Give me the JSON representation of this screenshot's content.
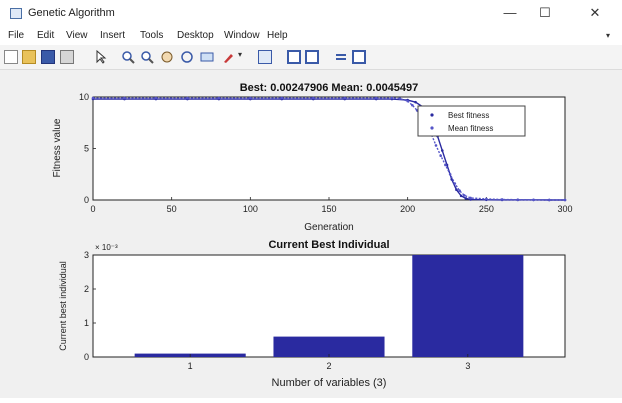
{
  "window": {
    "title": "Genetic Algorithm",
    "controls": {
      "minimize": "—",
      "maximize": "☐",
      "close": "✕"
    }
  },
  "menu": {
    "items": [
      "File",
      "Edit",
      "View",
      "Insert",
      "Tools",
      "Desktop",
      "Window",
      "Help"
    ]
  },
  "toolbar": {
    "icons": [
      "new-figure",
      "open-file",
      "save",
      "print",
      "edit-plot-arrow",
      "zoom-in",
      "zoom-out",
      "pan",
      "rotate-3d",
      "data-cursor",
      "brush",
      "brush-dropdown",
      "link-plot",
      "insert-colorbar",
      "insert-legend",
      "hide-plot-tools",
      "show-plot-tools"
    ]
  },
  "colors": {
    "series": "#2a2aa0",
    "mean_series": "#5555c8",
    "axes": "#222222",
    "toolbar_bg": "#f4f4f4",
    "figure_bg": "#f0f0f0"
  },
  "chart_data": [
    {
      "type": "scatter",
      "title": "Best: 0.00247906 Mean: 0.0045497",
      "xlabel": "Generation",
      "ylabel": "Fitness value",
      "xlim": [
        0,
        300
      ],
      "ylim": [
        0,
        10
      ],
      "xticks": [
        "0",
        "50",
        "100",
        "150",
        "200",
        "250",
        "300"
      ],
      "yticks": [
        "0",
        "5",
        "10"
      ],
      "legend_position": "top-right",
      "series": [
        {
          "name": "Best fitness",
          "marker": "dot",
          "x": [
            0,
            20,
            40,
            60,
            80,
            100,
            120,
            140,
            160,
            180,
            190,
            200,
            205,
            210,
            213,
            216,
            219,
            222,
            225,
            228,
            231,
            234,
            237,
            240,
            250,
            260,
            270,
            280,
            290,
            300
          ],
          "y": [
            9.8,
            9.8,
            9.8,
            9.8,
            9.8,
            9.8,
            9.8,
            9.8,
            9.8,
            9.8,
            9.8,
            9.7,
            9.5,
            9.0,
            8.3,
            7.4,
            6.2,
            4.8,
            3.4,
            2.0,
            1.0,
            0.4,
            0.15,
            0.05,
            0.02,
            0.01,
            0.01,
            0.01,
            0.0,
            0.0
          ]
        },
        {
          "name": "Mean fitness",
          "marker": "dot",
          "x": [
            0,
            20,
            40,
            60,
            80,
            100,
            120,
            140,
            160,
            180,
            190,
            195,
            200,
            203,
            206,
            209,
            212,
            215,
            218,
            221,
            224,
            227,
            230,
            233,
            236,
            240,
            250,
            260,
            270,
            280,
            290,
            300
          ],
          "y": [
            9.9,
            9.9,
            9.9,
            9.9,
            9.9,
            9.9,
            9.9,
            9.9,
            9.9,
            9.9,
            9.9,
            9.85,
            9.6,
            9.2,
            8.7,
            8.0,
            7.2,
            6.4,
            5.3,
            4.3,
            3.4,
            2.5,
            1.6,
            0.9,
            0.45,
            0.2,
            0.1,
            0.05,
            0.03,
            0.02,
            0.01,
            0.01
          ]
        }
      ]
    },
    {
      "type": "bar",
      "title": "Current Best Individual",
      "xlabel": "Number of variables (3)",
      "ylabel": "Current best individual",
      "exponent_label": "× 10⁻³",
      "categories": [
        "1",
        "2",
        "3"
      ],
      "values": [
        0.1,
        0.6,
        3.0
      ],
      "ylim": [
        0,
        3
      ],
      "yticks": [
        "0",
        "1",
        "2",
        "3"
      ]
    }
  ]
}
